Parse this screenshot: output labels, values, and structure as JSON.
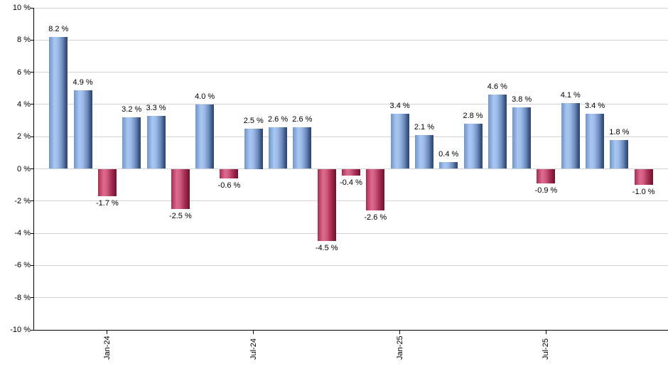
{
  "chart_data": {
    "type": "bar",
    "title": "",
    "unit": "%",
    "values": [
      8.2,
      4.9,
      -1.7,
      3.2,
      3.3,
      -2.5,
      4.0,
      -0.6,
      2.5,
      2.6,
      2.6,
      -4.5,
      -0.4,
      -2.6,
      3.4,
      2.1,
      0.4,
      2.8,
      4.6,
      3.8,
      -0.9,
      4.1,
      3.4,
      1.8,
      -1.0
    ],
    "bar_labels": [
      "8.2 %",
      "4.9 %",
      "-1.7 %",
      "3.2 %",
      "3.3 %",
      "-2.5 %",
      "4.0 %",
      "-0.6 %",
      "2.5 %",
      "2.6 %",
      "2.6 %",
      "-4.5 %",
      "-0.4 %",
      "-2.6 %",
      "3.4 %",
      "2.1 %",
      "0.4 %",
      "2.8 %",
      "4.6 %",
      "3.8 %",
      "-0.9 %",
      "4.1 %",
      "3.4 %",
      "1.8 %",
      "-1.0 %"
    ],
    "y_axis": {
      "min": -10,
      "max": 10,
      "step": 2,
      "tick_labels": [
        "10 %",
        "8 %",
        "6 %",
        "4 %",
        "2 %",
        "0 %",
        "-2 %",
        "-4 %",
        "-6 %",
        "-8 %",
        "-10 %"
      ]
    },
    "x_axis": {
      "ticks": [
        {
          "bar_index": 2,
          "label": "Jan-24"
        },
        {
          "bar_index": 8,
          "label": "Jul-24"
        },
        {
          "bar_index": 14,
          "label": "Jan-25"
        },
        {
          "bar_index": 20,
          "label": "Jul-25"
        }
      ]
    },
    "legend": {
      "visible": false
    },
    "grid": "horizontal",
    "colors": {
      "positive_bar": "#94b5e8",
      "negative_bar": "#c84a6e",
      "gridline": "#d3d3d3",
      "axis": "#000000",
      "label_text": "#000000"
    }
  }
}
